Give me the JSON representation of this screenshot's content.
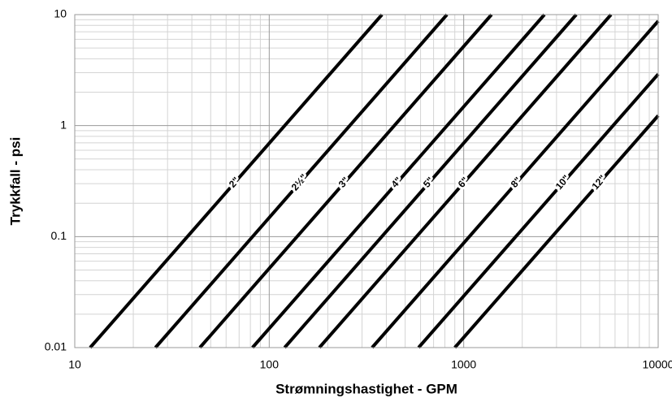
{
  "chart_data": {
    "type": "line",
    "xlabel": "Strømningshastighet - GPM",
    "ylabel": "Trykkfall - psi",
    "log_x": true,
    "log_y": true,
    "grid": true,
    "xlim": [
      10,
      10000
    ],
    "ylim": [
      0.01,
      10
    ],
    "xticks": [
      10,
      100,
      1000,
      10000
    ],
    "yticks": [
      0.01,
      0.1,
      1,
      10
    ],
    "series": [
      {
        "name": "2\"",
        "color": "#000000",
        "x": [
          12,
          380
        ],
        "values": [
          0.01,
          10
        ]
      },
      {
        "name": "2½\"",
        "color": "#000000",
        "x": [
          26,
          820
        ],
        "values": [
          0.01,
          10
        ]
      },
      {
        "name": "3\"",
        "color": "#000000",
        "x": [
          44,
          1390
        ],
        "values": [
          0.01,
          10
        ]
      },
      {
        "name": "4\"",
        "color": "#000000",
        "x": [
          82,
          2600
        ],
        "values": [
          0.01,
          10
        ]
      },
      {
        "name": "5\"",
        "color": "#000000",
        "x": [
          120,
          3790
        ],
        "values": [
          0.01,
          10
        ]
      },
      {
        "name": "6\"",
        "color": "#000000",
        "x": [
          181,
          5720
        ],
        "values": [
          0.01,
          10
        ]
      },
      {
        "name": "8\"",
        "color": "#000000",
        "x": [
          338,
          10000
        ],
        "values": [
          0.01,
          8.75
        ]
      },
      {
        "name": "10\"",
        "color": "#000000",
        "x": [
          586,
          10000
        ],
        "values": [
          0.01,
          2.91
        ]
      },
      {
        "name": "12\"",
        "color": "#000000",
        "x": [
          900,
          10000
        ],
        "values": [
          0.01,
          1.23
        ]
      }
    ]
  }
}
